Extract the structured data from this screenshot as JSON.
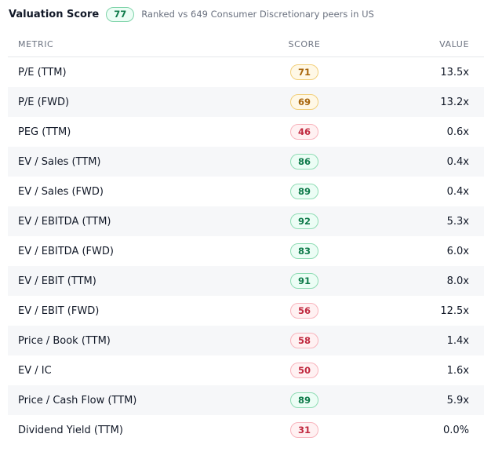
{
  "header": {
    "title": "Valuation Score",
    "score": "77",
    "subtitle": "Ranked vs 649 Consumer Discretionary peers in US"
  },
  "table": {
    "columns": {
      "metric": "METRIC",
      "score": "SCORE",
      "value": "VALUE"
    },
    "rows": [
      {
        "metric": "P/E (TTM)",
        "score": "71",
        "value": "13.5x",
        "tone": "amber"
      },
      {
        "metric": "P/E (FWD)",
        "score": "69",
        "value": "13.2x",
        "tone": "amber"
      },
      {
        "metric": "PEG (TTM)",
        "score": "46",
        "value": "0.6x",
        "tone": "red"
      },
      {
        "metric": "EV / Sales (TTM)",
        "score": "86",
        "value": "0.4x",
        "tone": "green"
      },
      {
        "metric": "EV / Sales (FWD)",
        "score": "89",
        "value": "0.4x",
        "tone": "green"
      },
      {
        "metric": "EV / EBITDA (TTM)",
        "score": "92",
        "value": "5.3x",
        "tone": "green"
      },
      {
        "metric": "EV / EBITDA (FWD)",
        "score": "83",
        "value": "6.0x",
        "tone": "green"
      },
      {
        "metric": "EV / EBIT (TTM)",
        "score": "91",
        "value": "8.0x",
        "tone": "green"
      },
      {
        "metric": "EV / EBIT (FWD)",
        "score": "56",
        "value": "12.5x",
        "tone": "red"
      },
      {
        "metric": "Price / Book (TTM)",
        "score": "58",
        "value": "1.4x",
        "tone": "red"
      },
      {
        "metric": "EV / IC",
        "score": "50",
        "value": "1.6x",
        "tone": "red"
      },
      {
        "metric": "Price / Cash Flow (TTM)",
        "score": "89",
        "value": "5.9x",
        "tone": "green"
      },
      {
        "metric": "Dividend Yield (TTM)",
        "score": "31",
        "value": "0.0%",
        "tone": "red"
      }
    ]
  },
  "colors": {
    "green": "#0f7a4a",
    "amber": "#a8650b",
    "red": "#c0293f",
    "row_shade": "#f6f7f9"
  }
}
